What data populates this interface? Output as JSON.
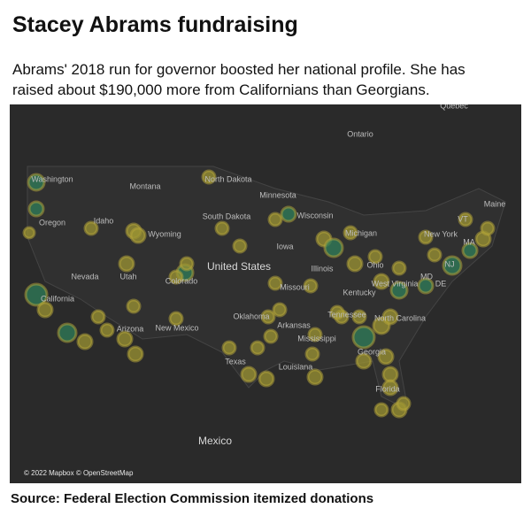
{
  "header": {
    "title": "Stacey Abrams fundraising",
    "subtitle": "Abrams' 2018 run for governor boosted her national profile. She has raised about $190,000 more from Californians than Georgians."
  },
  "map": {
    "labels": [
      "Quebec",
      "Ontario",
      "Washington",
      "Montana",
      "North Dakota",
      "Minnesota",
      "South Dakota",
      "Wisconsin",
      "Maine",
      "Oregon",
      "Idaho",
      "Wyoming",
      "Michigan",
      "New York",
      "VT",
      "MA",
      "Iowa",
      "United States",
      "Nevada",
      "Utah",
      "Colorado",
      "Illinois",
      "Ohio",
      "NJ",
      "MD",
      "DE",
      "West Virginia",
      "Missouri",
      "Kentucky",
      "California",
      "Oklahoma",
      "Tennessee",
      "North Carolina",
      "Arizona",
      "New Mexico",
      "Arkansas",
      "Mississippi",
      "Georgia",
      "Texas",
      "Louisiana",
      "Florida",
      "Mexico"
    ],
    "attribution": "© 2022 Mapbox © OpenStreetMap"
  },
  "footer": {
    "source": "Source: Federal Election Commission itemized donations"
  }
}
